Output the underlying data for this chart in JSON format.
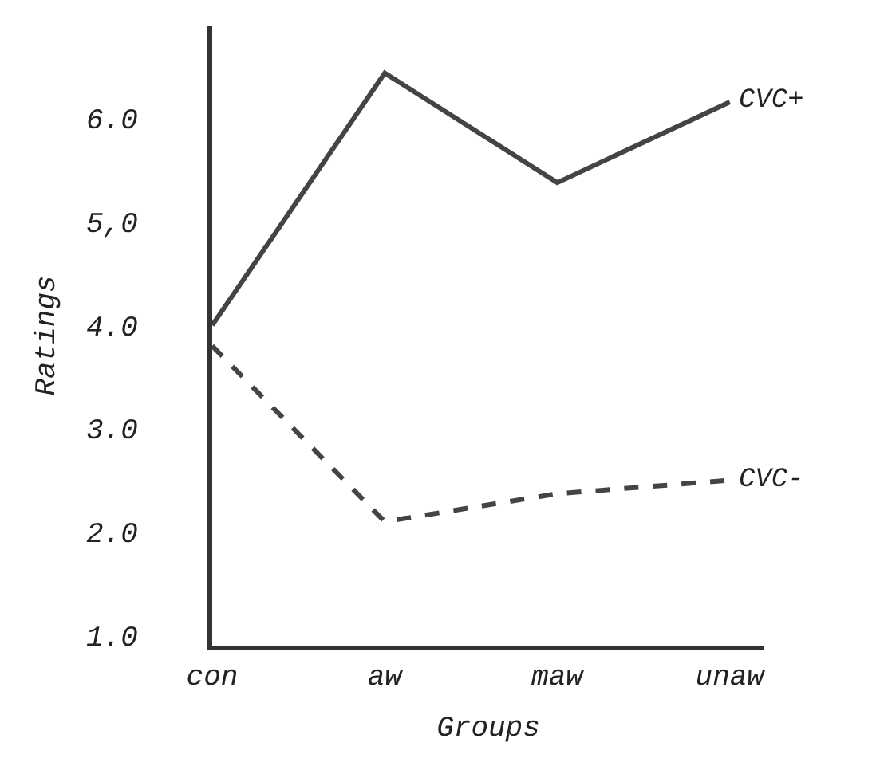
{
  "chart_data": {
    "type": "line",
    "xlabel": "Groups",
    "ylabel": "Ratings",
    "categories": [
      "con",
      "aw",
      "maw",
      "unaw"
    ],
    "series": [
      {
        "name": "CVC+",
        "color": "#444444",
        "values": [
          4.0,
          6.44,
          5.38,
          6.16
        ],
        "line_style": "solid"
      },
      {
        "name": "CVC-",
        "color": "#444444",
        "values": [
          3.8,
          2.1,
          2.37,
          2.5
        ],
        "line_style": "dashed"
      }
    ],
    "ylim": [
      0.9,
      6.9
    ],
    "yticks": [
      {
        "value": 1,
        "label": "1.0"
      },
      {
        "value": 2,
        "label": "2.0"
      },
      {
        "value": 3,
        "label": "3.0"
      },
      {
        "value": 4,
        "label": "4.0"
      },
      {
        "value": 5,
        "label": "5,0"
      },
      {
        "value": 6,
        "label": "6.0"
      }
    ],
    "legend": false,
    "marker": "none"
  }
}
